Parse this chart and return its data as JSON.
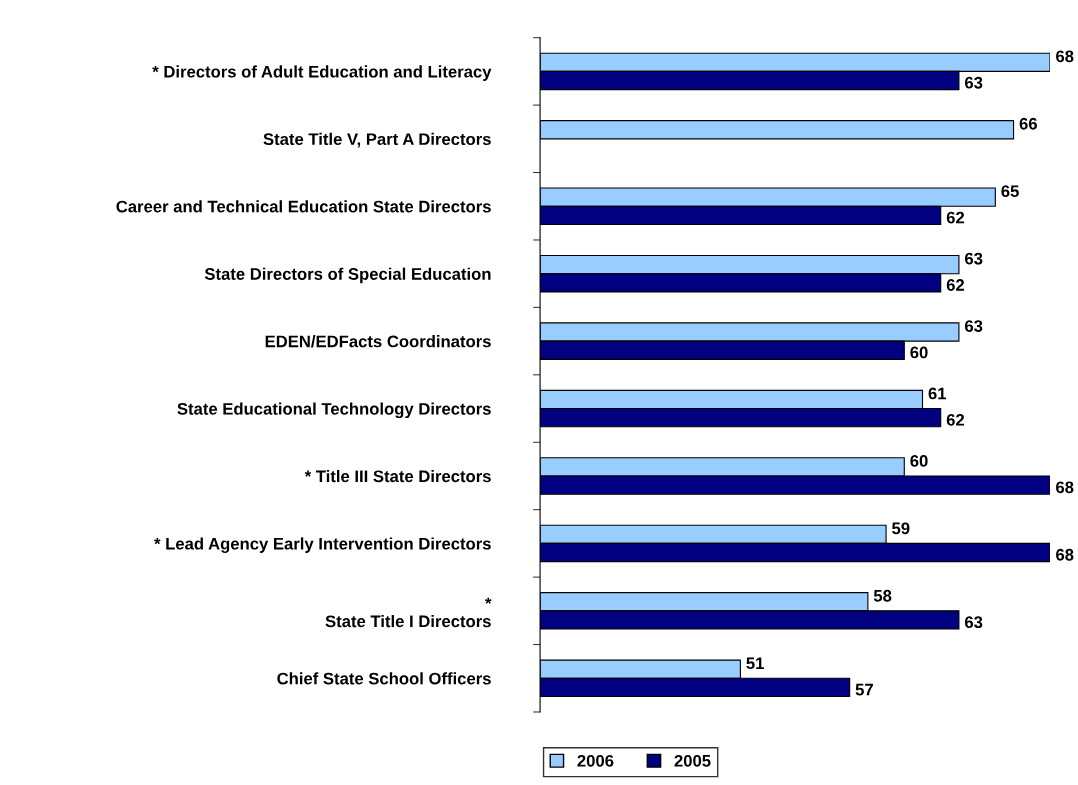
{
  "chart_data": {
    "type": "bar",
    "orientation": "horizontal",
    "categories": [
      "* Directors of Adult Education and Literacy",
      "State Title V, Part A Directors",
      "Career and Technical Education State Directors",
      "State Directors of Special Education",
      "EDEN/EDFacts Coordinators",
      "State Educational Technology Directors",
      "* Title III State Directors",
      "* Lead Agency Early Intervention Directors",
      "*\nState Title I Directors",
      "Chief State School Officers"
    ],
    "series": [
      {
        "name": "2006",
        "color": "#99ccff",
        "values": [
          68,
          66,
          65,
          63,
          63,
          61,
          60,
          59,
          58,
          51
        ]
      },
      {
        "name": "2005",
        "color": "#000080",
        "values": [
          63,
          null,
          62,
          62,
          60,
          62,
          68,
          68,
          63,
          57
        ]
      }
    ],
    "xlim": [
      40,
      68
    ],
    "data_labels": true,
    "legend": "bottom",
    "grid": false,
    "tick_labels": "y"
  }
}
